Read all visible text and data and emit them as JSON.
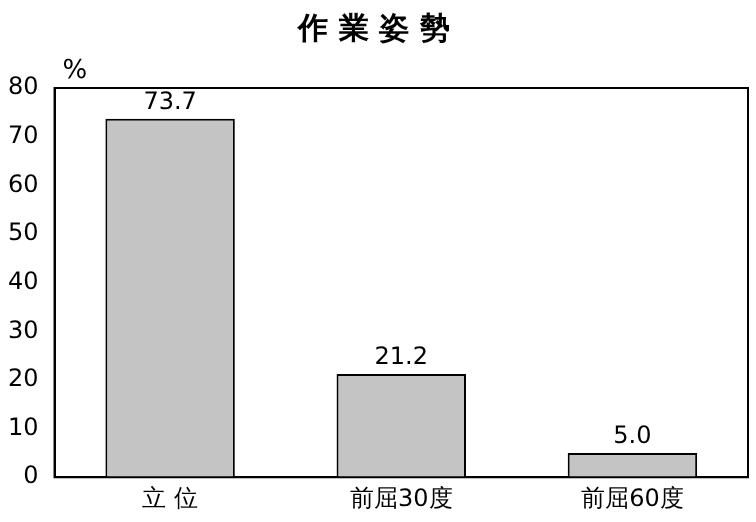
{
  "chart_data": {
    "type": "bar",
    "title": "作 業 姿 勢",
    "ylabel": "%",
    "categories": [
      "立 位",
      "前屈30度",
      "前屈60度"
    ],
    "values": [
      73.7,
      21.2,
      5.0
    ],
    "value_labels": [
      "73.7",
      "21.2",
      "5.0"
    ],
    "color": "#c4c4c4",
    "ylim": [
      0,
      80
    ],
    "yticks": [
      0,
      10,
      20,
      30,
      40,
      50,
      60,
      70,
      80
    ],
    "grid": false,
    "legend": false
  }
}
